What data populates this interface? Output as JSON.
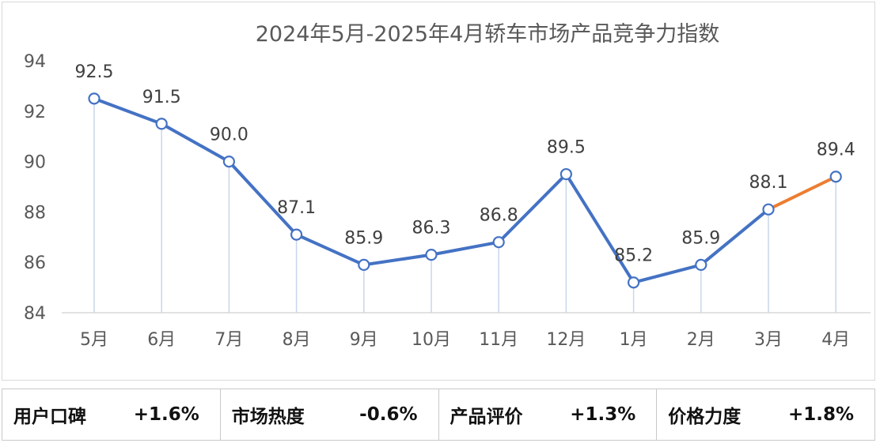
{
  "chart_data": {
    "type": "line",
    "title": "2024年5月-2025年4月轿车市场产品竞争力指数",
    "categories": [
      "5月",
      "6月",
      "7月",
      "8月",
      "9月",
      "10月",
      "11月",
      "12月",
      "1月",
      "2月",
      "3月",
      "4月"
    ],
    "values": [
      92.5,
      91.5,
      90.0,
      87.1,
      85.9,
      86.3,
      86.8,
      89.5,
      85.2,
      85.9,
      88.1,
      89.4
    ],
    "value_labels": [
      "92.5",
      "91.5",
      "90.0",
      "87.1",
      "85.9",
      "86.3",
      "86.8",
      "89.5",
      "85.2",
      "85.9",
      "88.1",
      "89.4"
    ],
    "ylim": [
      84,
      94
    ],
    "yticks": [
      "84",
      "86",
      "88",
      "90",
      "92",
      "94"
    ],
    "grid": false,
    "line_color": "#4472c4",
    "highlight_last_segment_color": "#ed7d31",
    "drop_line_color": "#c9d6ea"
  },
  "stats": [
    {
      "label": "用户口碑",
      "value": "+1.6%"
    },
    {
      "label": "市场热度",
      "value": "-0.6%"
    },
    {
      "label": "产品评价",
      "value": "+1.3%"
    },
    {
      "label": "价格力度",
      "value": "+1.8%"
    }
  ]
}
